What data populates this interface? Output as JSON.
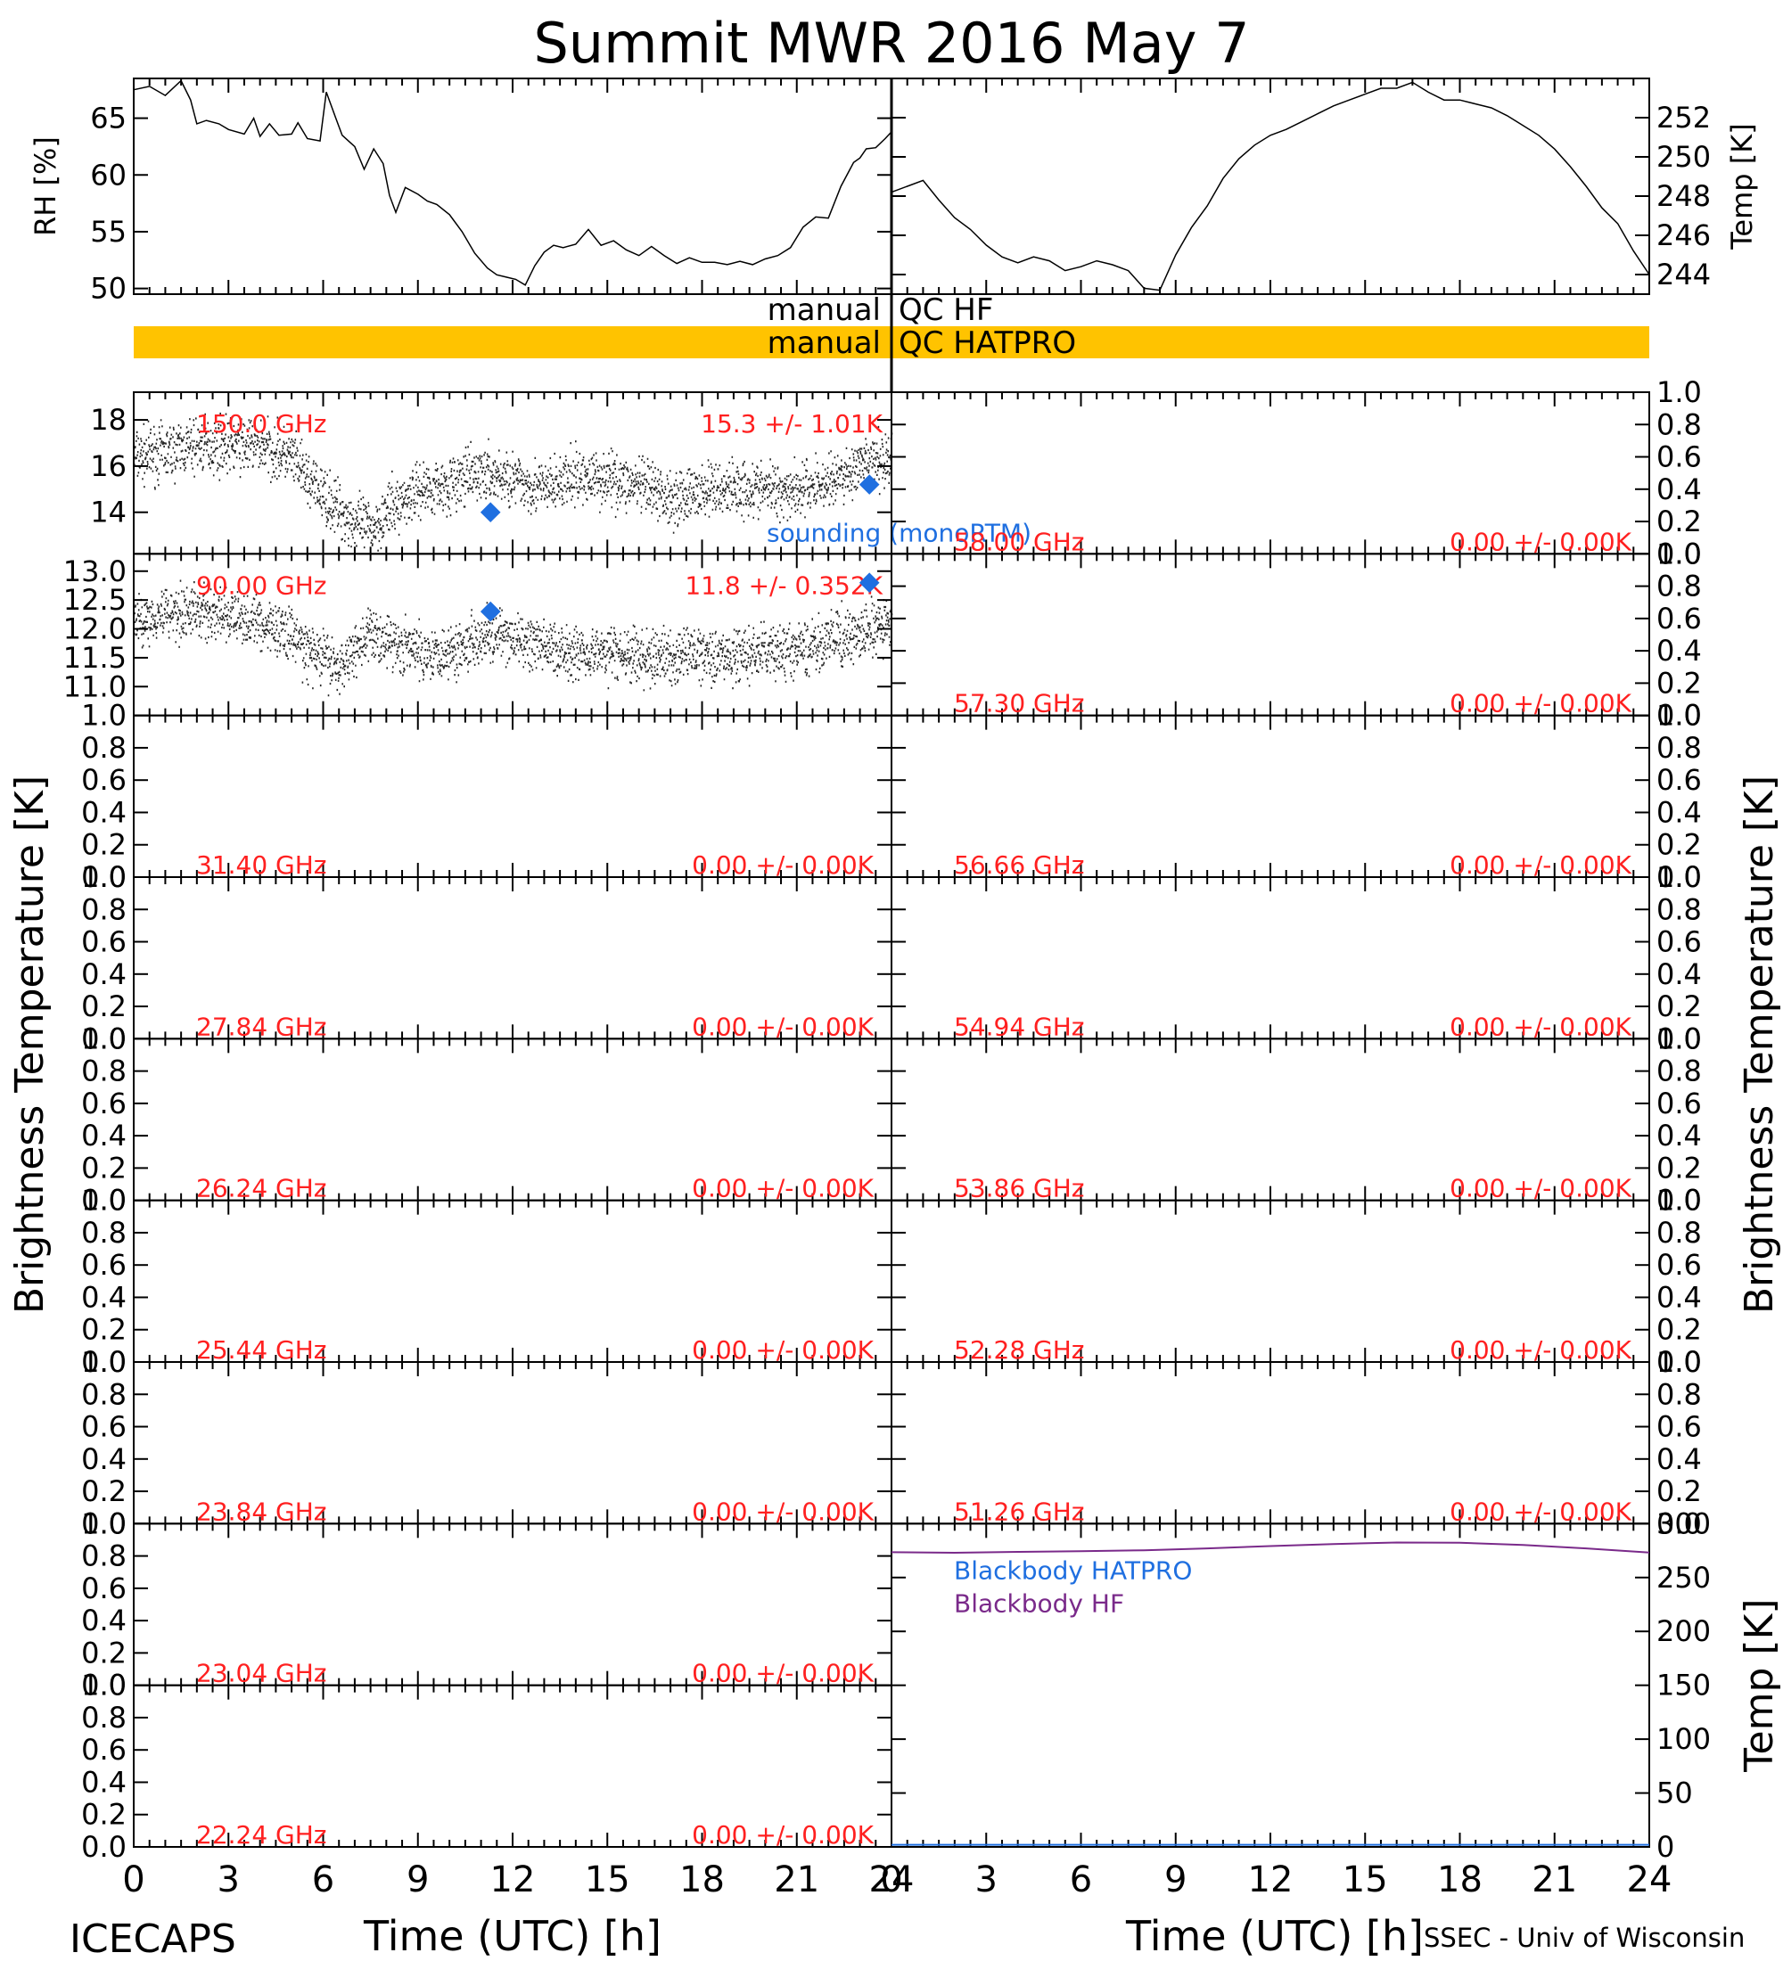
{
  "title": "Summit MWR 2016 May  7",
  "footer": {
    "left": "ICECAPS",
    "right": "SSEC - Univ of Wisconsin"
  },
  "colors": {
    "annotation": "#ff2020",
    "sounding": "#1f6fe0",
    "qc_bar": "#ffc300",
    "blackbody_hf": "#7a2a8a",
    "blackbody_hatpro": "#1f6fe0"
  },
  "time_axis": {
    "xlabel": "Time (UTC) [h]",
    "range": [
      0,
      24
    ],
    "tick_labels": [
      "0",
      "3",
      "6",
      "9",
      "12",
      "15",
      "18",
      "21",
      "24"
    ]
  },
  "qc": {
    "hf_label_left": "manual",
    "hf_label_right": "QC HF",
    "hatpro_label_left": "manual",
    "hatpro_label_right": "QC HATPRO"
  },
  "side_labels": {
    "left": "Brightness Temperature [K]",
    "right": "Brightness Temperature [K]"
  },
  "chart_data": [
    {
      "type": "line",
      "panel": "rh",
      "ylabel": "RH [%]",
      "ylim": [
        49.5,
        68.5
      ],
      "tick_labels": [
        "50",
        "55",
        "60",
        "65"
      ],
      "x": [
        0,
        0.5,
        1,
        1.5,
        1.8,
        2,
        2.3,
        2.7,
        3,
        3.5,
        3.8,
        4,
        4.3,
        4.6,
        5,
        5.2,
        5.5,
        5.9,
        6.1,
        6.4,
        6.6,
        6.8,
        7,
        7.3,
        7.6,
        7.9,
        8.1,
        8.3,
        8.6,
        9,
        9.3,
        9.6,
        10,
        10.4,
        10.8,
        11.2,
        11.5,
        11.8,
        12.1,
        12.4,
        12.7,
        13,
        13.3,
        13.6,
        14,
        14.4,
        14.8,
        15.2,
        15.6,
        16,
        16.4,
        16.8,
        17.2,
        17.6,
        18,
        18.4,
        18.8,
        19.2,
        19.6,
        20,
        20.4,
        20.8,
        21.2,
        21.6,
        22,
        22.4,
        22.8,
        23,
        23.2,
        23.5,
        23.8,
        24
      ],
      "values": [
        67.5,
        67.8,
        67,
        68.3,
        66.6,
        64.5,
        64.8,
        64.5,
        64,
        63.6,
        65,
        63.4,
        64.5,
        63.5,
        63.6,
        64.6,
        63.2,
        63,
        67.3,
        65,
        63.5,
        63,
        62.5,
        60.5,
        62.3,
        61,
        58.2,
        56.7,
        58.9,
        58.3,
        57.7,
        57.4,
        56.5,
        55,
        53.1,
        51.8,
        51.2,
        51,
        50.8,
        50.3,
        52,
        53.2,
        53.8,
        53.6,
        53.9,
        55.2,
        53.8,
        54.2,
        53.4,
        52.9,
        53.7,
        52.9,
        52.2,
        52.7,
        52.3,
        52.3,
        52.1,
        52.4,
        52.1,
        52.6,
        52.9,
        53.6,
        55.4,
        56.3,
        56.2,
        59,
        61.1,
        61.5,
        62.3,
        62.4,
        63.2,
        63.8
      ]
    },
    {
      "type": "line",
      "panel": "temp",
      "ylabel": "Temp [K]",
      "ylim": [
        243,
        254
      ],
      "tick_labels": [
        "244",
        "246",
        "248",
        "250",
        "252"
      ],
      "x": [
        0,
        0.5,
        1,
        1.5,
        2,
        2.5,
        3,
        3.5,
        4,
        4.5,
        5,
        5.5,
        6,
        6.5,
        7,
        7.5,
        8,
        8.5,
        9,
        9.5,
        10,
        10.5,
        11,
        11.5,
        12,
        12.5,
        13,
        13.5,
        14,
        14.5,
        15,
        15.5,
        16,
        16.5,
        17,
        17.5,
        18,
        18.5,
        19,
        19.5,
        20,
        20.5,
        21,
        21.5,
        22,
        22.5,
        23,
        23.5,
        24
      ],
      "values": [
        248.2,
        248.5,
        248.8,
        247.8,
        246.9,
        246.3,
        245.5,
        244.9,
        244.6,
        244.9,
        244.7,
        244.2,
        244.4,
        244.7,
        244.5,
        244.2,
        243.3,
        243.2,
        245,
        246.4,
        247.5,
        248.9,
        249.9,
        250.6,
        251.1,
        251.4,
        251.8,
        252.2,
        252.6,
        252.9,
        253.2,
        253.5,
        253.5,
        253.8,
        253.3,
        252.9,
        252.9,
        252.7,
        252.5,
        252.1,
        251.6,
        251.1,
        250.4,
        249.5,
        248.5,
        247.4,
        246.6,
        245.2,
        244
      ]
    },
    {
      "type": "bar",
      "panel": "qc",
      "series": [
        {
          "name": "QC HF",
          "segments": []
        },
        {
          "name": "QC HATPRO",
          "segments": [
            [
              0,
              24
            ]
          ]
        }
      ]
    },
    {
      "type": "scatter",
      "panel": "left",
      "channel": "150.0 GHz",
      "stat": "15.3 +/-  1.01K",
      "ylim": [
        12.2,
        19.2
      ],
      "tick_labels": [
        "14",
        "16",
        "18"
      ],
      "trend_x": [
        0,
        1,
        2,
        3,
        4,
        5,
        5.5,
        6,
        6.5,
        7,
        7.5,
        8,
        9,
        10,
        11,
        12,
        13,
        14,
        15,
        16,
        17,
        18,
        19,
        20,
        21,
        22,
        23,
        24
      ],
      "trend_y": [
        16.4,
        16.6,
        16.9,
        16.9,
        16.9,
        16.3,
        15.4,
        14.7,
        14.1,
        13.5,
        13.3,
        14,
        15,
        15.2,
        15.7,
        15.4,
        15,
        15.5,
        15.5,
        15.1,
        14.6,
        14.9,
        15.1,
        15,
        15,
        15.3,
        15.9,
        16.4
      ],
      "noise": 0.9,
      "sounding": [
        [
          11.3,
          14
        ],
        [
          23.3,
          15.2
        ]
      ],
      "sounding_label": "sounding (monoRTM)"
    },
    {
      "type": "scatter",
      "panel": "left",
      "channel": "90.00 GHz",
      "stat": "11.8 +/- 0.352K",
      "ylim": [
        10.5,
        13.3
      ],
      "tick_labels": [
        "11.0",
        "11.5",
        "12.0",
        "12.5",
        "13.0"
      ],
      "trend_x": [
        0,
        1,
        2,
        3,
        4,
        5,
        5.5,
        6,
        6.5,
        7,
        7.5,
        8,
        9,
        10,
        11,
        12,
        13,
        14,
        15,
        16,
        17,
        18,
        19,
        20,
        21,
        22,
        23,
        24
      ],
      "trend_y": [
        12.1,
        12.3,
        12.3,
        12.2,
        12.1,
        11.9,
        11.6,
        11.5,
        11.3,
        11.7,
        11.9,
        11.8,
        11.6,
        11.6,
        11.9,
        11.8,
        11.7,
        11.6,
        11.6,
        11.5,
        11.5,
        11.6,
        11.5,
        11.6,
        11.6,
        11.8,
        11.9,
        12.1
      ],
      "noise": 0.35,
      "sounding": [
        [
          11.3,
          12.3
        ],
        [
          23.3,
          12.8
        ]
      ]
    },
    {
      "type": "line",
      "panel": "left",
      "channel": "31.40 GHz",
      "stat": "0.00 +/-  0.00K",
      "ylim": [
        0,
        1
      ],
      "tick_labels": [
        "0.0",
        "0.2",
        "0.4",
        "0.6",
        "0.8",
        "1.0"
      ]
    },
    {
      "type": "line",
      "panel": "left",
      "channel": "27.84 GHz",
      "stat": "0.00 +/-  0.00K",
      "ylim": [
        0,
        1
      ],
      "tick_labels": [
        "0.0",
        "0.2",
        "0.4",
        "0.6",
        "0.8",
        "1.0"
      ]
    },
    {
      "type": "line",
      "panel": "left",
      "channel": "26.24 GHz",
      "stat": "0.00 +/-  0.00K",
      "ylim": [
        0,
        1
      ],
      "tick_labels": [
        "0.0",
        "0.2",
        "0.4",
        "0.6",
        "0.8",
        "1.0"
      ]
    },
    {
      "type": "line",
      "panel": "left",
      "channel": "25.44 GHz",
      "stat": "0.00 +/-  0.00K",
      "ylim": [
        0,
        1
      ],
      "tick_labels": [
        "0.0",
        "0.2",
        "0.4",
        "0.6",
        "0.8",
        "1.0"
      ]
    },
    {
      "type": "line",
      "panel": "left",
      "channel": "23.84 GHz",
      "stat": "0.00 +/-  0.00K",
      "ylim": [
        0,
        1
      ],
      "tick_labels": [
        "0.0",
        "0.2",
        "0.4",
        "0.6",
        "0.8",
        "1.0"
      ]
    },
    {
      "type": "line",
      "panel": "left",
      "channel": "23.04 GHz",
      "stat": "0.00 +/-  0.00K",
      "ylim": [
        0,
        1
      ],
      "tick_labels": [
        "0.0",
        "0.2",
        "0.4",
        "0.6",
        "0.8",
        "1.0"
      ]
    },
    {
      "type": "line",
      "panel": "left",
      "channel": "22.24 GHz",
      "stat": "0.00 +/-  0.00K",
      "ylim": [
        0,
        1
      ],
      "tick_labels": [
        "0.0",
        "0.2",
        "0.4",
        "0.6",
        "0.8",
        "1.0"
      ]
    },
    {
      "type": "line",
      "panel": "right",
      "channel": "58.00 GHz",
      "stat": "0.00 +/-  0.00K",
      "ylim": [
        0,
        1
      ],
      "tick_labels": [
        "0.0",
        "0.2",
        "0.4",
        "0.6",
        "0.8",
        "1.0"
      ]
    },
    {
      "type": "line",
      "panel": "right",
      "channel": "57.30 GHz",
      "stat": "0.00 +/-  0.00K",
      "ylim": [
        0,
        1
      ],
      "tick_labels": [
        "0.0",
        "0.2",
        "0.4",
        "0.6",
        "0.8",
        "1.0"
      ]
    },
    {
      "type": "line",
      "panel": "right",
      "channel": "56.66 GHz",
      "stat": "0.00 +/-  0.00K",
      "ylim": [
        0,
        1
      ],
      "tick_labels": [
        "0.0",
        "0.2",
        "0.4",
        "0.6",
        "0.8",
        "1.0"
      ]
    },
    {
      "type": "line",
      "panel": "right",
      "channel": "54.94 GHz",
      "stat": "0.00 +/-  0.00K",
      "ylim": [
        0,
        1
      ],
      "tick_labels": [
        "0.0",
        "0.2",
        "0.4",
        "0.6",
        "0.8",
        "1.0"
      ]
    },
    {
      "type": "line",
      "panel": "right",
      "channel": "53.86 GHz",
      "stat": "0.00 +/-  0.00K",
      "ylim": [
        0,
        1
      ],
      "tick_labels": [
        "0.0",
        "0.2",
        "0.4",
        "0.6",
        "0.8",
        "1.0"
      ]
    },
    {
      "type": "line",
      "panel": "right",
      "channel": "52.28 GHz",
      "stat": "0.00 +/-  0.00K",
      "ylim": [
        0,
        1
      ],
      "tick_labels": [
        "0.0",
        "0.2",
        "0.4",
        "0.6",
        "0.8",
        "1.0"
      ]
    },
    {
      "type": "line",
      "panel": "right",
      "channel": "51.26 GHz",
      "stat": "0.00 +/-  0.00K",
      "ylim": [
        0,
        1
      ],
      "tick_labels": [
        "0.0",
        "0.2",
        "0.4",
        "0.6",
        "0.8",
        "1.0"
      ]
    },
    {
      "type": "line",
      "panel": "blackbody",
      "ylabel": "Temp [K]",
      "ylim": [
        0,
        300
      ],
      "tick_labels": [
        "0",
        "50",
        "100",
        "150",
        "200",
        "250",
        "300"
      ],
      "series": [
        {
          "name": "Blackbody HATPRO",
          "x": [
            0,
            24
          ],
          "values": [
            2,
            2
          ]
        },
        {
          "name": "Blackbody HF",
          "x": [
            0,
            2,
            4,
            6,
            8,
            10,
            12,
            14,
            16,
            18,
            20,
            22,
            24
          ],
          "values": [
            273.5,
            273,
            273.8,
            274.5,
            275.3,
            277,
            279.2,
            281.1,
            282.5,
            282.3,
            280.2,
            277,
            273.2
          ]
        }
      ]
    }
  ]
}
